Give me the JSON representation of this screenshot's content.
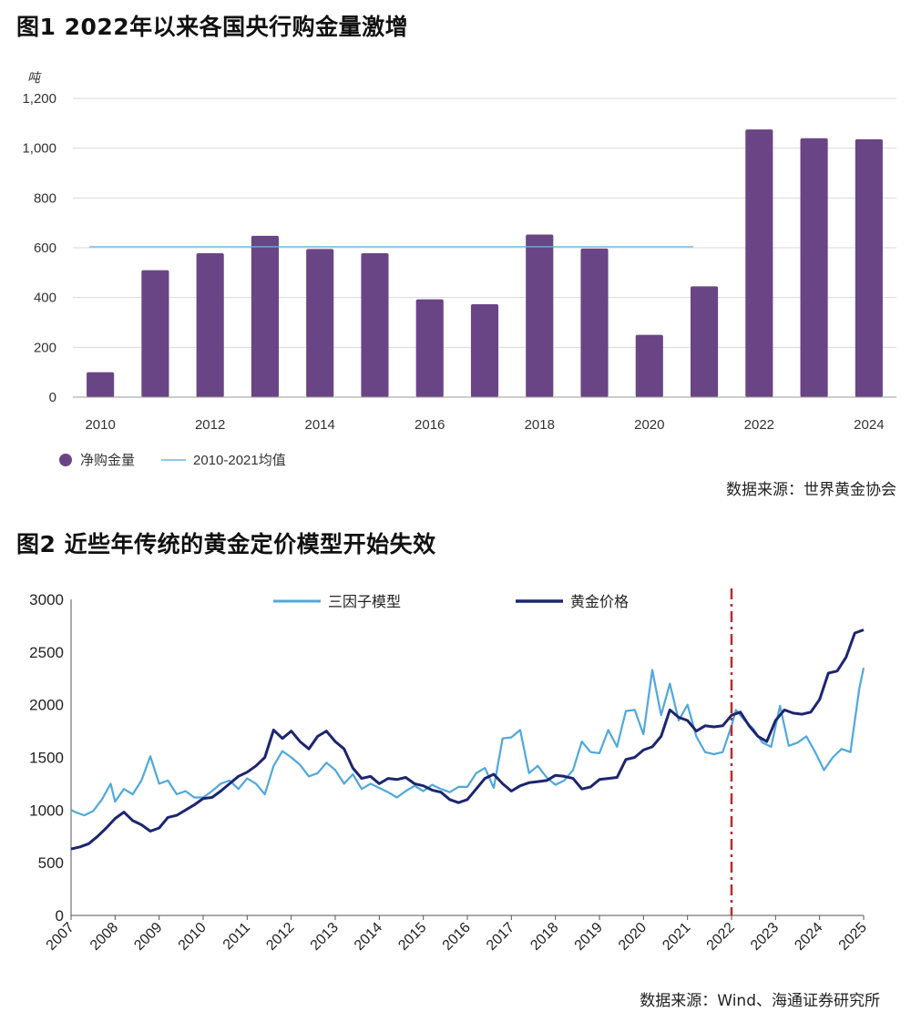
{
  "fig1": {
    "title": "图1  2022年以来各国央行购金量激增",
    "source": "数据来源：世界黄金协会"
  },
  "fig2": {
    "title": "图2  近些年传统的黄金定价模型开始失效",
    "source": "数据来源：Wind、海通证券研究所"
  },
  "chart_data": [
    {
      "type": "bar",
      "ylabel": "吨",
      "ylim": [
        0,
        1200
      ],
      "yticks": [
        0,
        200,
        400,
        600,
        800,
        1000,
        1200
      ],
      "ytick_labels": [
        "0",
        "200",
        "400",
        "600",
        "800",
        "1,000",
        "1,200"
      ],
      "categories": [
        "2010",
        "2011",
        "2012",
        "2013",
        "2014",
        "2015",
        "2016",
        "2017",
        "2018",
        "2019",
        "2020",
        "2021",
        "2022",
        "2023",
        "2024"
      ],
      "xtick_labels": [
        "2010",
        "",
        "2012",
        "",
        "2014",
        "",
        "2016",
        "",
        "2018",
        "",
        "2020",
        "",
        "2022",
        "",
        "2024"
      ],
      "series": [
        {
          "name": "净购金量",
          "color": "#6a4585",
          "values": [
            100,
            510,
            578,
            648,
            595,
            578,
            393,
            373,
            653,
            597,
            250,
            445,
            1075,
            1040,
            1036
          ]
        }
      ],
      "reference_line": {
        "name": "2010-2021均值",
        "value": 604,
        "from": "2010",
        "to": "2021",
        "color": "#6fb6e6"
      },
      "grid": true,
      "legend": "bottom-left"
    },
    {
      "type": "line",
      "ylim": [
        0,
        3000
      ],
      "yticks": [
        0,
        500,
        1000,
        1500,
        2000,
        2500,
        3000
      ],
      "xlim": [
        2007,
        2025
      ],
      "xticks": [
        2007,
        2008,
        2009,
        2010,
        2011,
        2012,
        2013,
        2014,
        2015,
        2016,
        2017,
        2018,
        2019,
        2020,
        2021,
        2022,
        2023,
        2024,
        2025
      ],
      "vline": {
        "x": 2022.0,
        "color": "#c0282d",
        "style": "dash-dot"
      },
      "legend": "top",
      "series": [
        {
          "name": "三因子模型",
          "color": "#4fa8dc",
          "x": [
            2007.0,
            2007.1,
            2007.3,
            2007.5,
            2007.7,
            2007.9,
            2008.0,
            2008.2,
            2008.4,
            2008.6,
            2008.8,
            2009.0,
            2009.2,
            2009.4,
            2009.6,
            2009.8,
            2010.0,
            2010.2,
            2010.4,
            2010.6,
            2010.8,
            2011.0,
            2011.2,
            2011.4,
            2011.6,
            2011.8,
            2012.0,
            2012.2,
            2012.4,
            2012.6,
            2012.8,
            2013.0,
            2013.2,
            2013.4,
            2013.6,
            2013.8,
            2014.0,
            2014.2,
            2014.4,
            2014.6,
            2014.8,
            2015.0,
            2015.2,
            2015.4,
            2015.6,
            2015.8,
            2016.0,
            2016.2,
            2016.4,
            2016.6,
            2016.8,
            2017.0,
            2017.2,
            2017.4,
            2017.6,
            2017.8,
            2018.0,
            2018.2,
            2018.4,
            2018.6,
            2018.8,
            2019.0,
            2019.2,
            2019.4,
            2019.6,
            2019.8,
            2020.0,
            2020.2,
            2020.4,
            2020.6,
            2020.8,
            2021.0,
            2021.2,
            2021.4,
            2021.6,
            2021.8,
            2022.0,
            2022.1,
            2022.3,
            2022.5,
            2022.7,
            2022.9,
            2023.1,
            2023.3,
            2023.5,
            2023.7,
            2023.9,
            2024.1,
            2024.3,
            2024.5,
            2024.7,
            2024.9,
            2025.0
          ],
          "y": [
            1000,
            980,
            950,
            990,
            1100,
            1250,
            1080,
            1200,
            1150,
            1280,
            1510,
            1250,
            1280,
            1150,
            1180,
            1120,
            1120,
            1180,
            1250,
            1280,
            1200,
            1300,
            1250,
            1150,
            1420,
            1560,
            1500,
            1430,
            1320,
            1350,
            1450,
            1380,
            1250,
            1340,
            1200,
            1250,
            1210,
            1170,
            1120,
            1180,
            1230,
            1180,
            1240,
            1200,
            1170,
            1220,
            1220,
            1350,
            1400,
            1210,
            1680,
            1690,
            1760,
            1350,
            1420,
            1310,
            1240,
            1280,
            1380,
            1650,
            1550,
            1540,
            1760,
            1600,
            1940,
            1950,
            1720,
            2330,
            1900,
            2200,
            1850,
            2000,
            1700,
            1550,
            1530,
            1550,
            1800,
            1950,
            1850,
            1770,
            1640,
            1600,
            1990,
            1610,
            1640,
            1700,
            1550,
            1380,
            1500,
            1580,
            1550,
            2150,
            2350
          ]
        },
        {
          "name": "黄金价格",
          "color": "#1c2570",
          "x": [
            2007.0,
            2007.2,
            2007.4,
            2007.6,
            2007.8,
            2008.0,
            2008.2,
            2008.4,
            2008.6,
            2008.8,
            2009.0,
            2009.2,
            2009.4,
            2009.6,
            2009.8,
            2010.0,
            2010.2,
            2010.4,
            2010.6,
            2010.8,
            2011.0,
            2011.2,
            2011.4,
            2011.6,
            2011.8,
            2012.0,
            2012.2,
            2012.4,
            2012.6,
            2012.8,
            2013.0,
            2013.2,
            2013.4,
            2013.6,
            2013.8,
            2014.0,
            2014.2,
            2014.4,
            2014.6,
            2014.8,
            2015.0,
            2015.2,
            2015.4,
            2015.6,
            2015.8,
            2016.0,
            2016.2,
            2016.4,
            2016.6,
            2016.8,
            2017.0,
            2017.2,
            2017.4,
            2017.6,
            2017.8,
            2018.0,
            2018.2,
            2018.4,
            2018.6,
            2018.8,
            2019.0,
            2019.2,
            2019.4,
            2019.6,
            2019.8,
            2020.0,
            2020.2,
            2020.4,
            2020.6,
            2020.8,
            2021.0,
            2021.2,
            2021.4,
            2021.6,
            2021.8,
            2022.0,
            2022.2,
            2022.4,
            2022.6,
            2022.8,
            2023.0,
            2023.2,
            2023.4,
            2023.6,
            2023.8,
            2024.0,
            2024.2,
            2024.4,
            2024.6,
            2024.8,
            2025.0
          ],
          "y": [
            630,
            650,
            680,
            750,
            830,
            920,
            980,
            900,
            860,
            800,
            830,
            930,
            950,
            1000,
            1050,
            1110,
            1120,
            1180,
            1250,
            1320,
            1360,
            1420,
            1500,
            1760,
            1680,
            1750,
            1650,
            1580,
            1700,
            1750,
            1650,
            1580,
            1400,
            1300,
            1320,
            1250,
            1300,
            1290,
            1310,
            1250,
            1230,
            1190,
            1170,
            1100,
            1070,
            1100,
            1200,
            1300,
            1340,
            1250,
            1180,
            1230,
            1260,
            1270,
            1280,
            1330,
            1320,
            1300,
            1200,
            1220,
            1290,
            1300,
            1310,
            1480,
            1500,
            1570,
            1600,
            1700,
            1950,
            1880,
            1850,
            1750,
            1800,
            1790,
            1800,
            1900,
            1930,
            1800,
            1700,
            1650,
            1850,
            1950,
            1920,
            1910,
            1930,
            2050,
            2300,
            2320,
            2450,
            2680,
            2710
          ]
        }
      ]
    }
  ]
}
